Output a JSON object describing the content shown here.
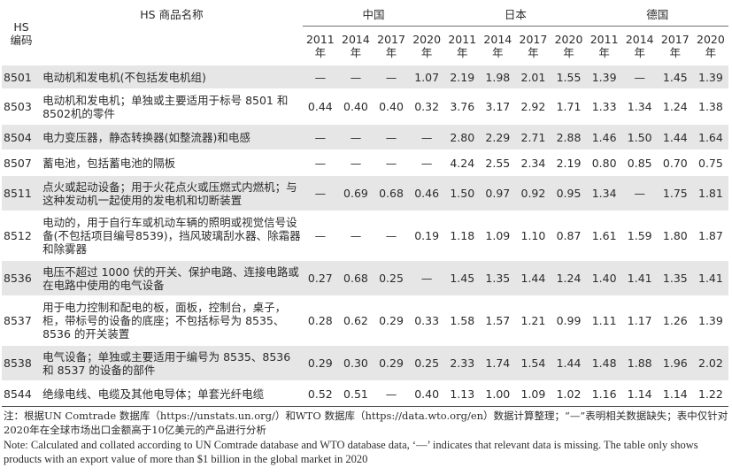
{
  "header": {
    "hs_code": "HS\n编码",
    "product_name": "HS 商品名称",
    "groups": [
      "中国",
      "日本",
      "德国"
    ],
    "years": [
      "2011\n年",
      "2014\n年",
      "2017\n年",
      "2020\n年"
    ]
  },
  "rows": [
    {
      "code": "8501",
      "name": "电动机和发电机(不包括发电机组)",
      "values": [
        "—",
        "—",
        "—",
        "1.07",
        "2.19",
        "1.98",
        "2.01",
        "1.55",
        "1.39",
        "—",
        "1.45",
        "1.39"
      ]
    },
    {
      "code": "8503",
      "name": "电动机和发电机；单独或主要适用于标号 8501 和8502机的零件",
      "values": [
        "0.44",
        "0.40",
        "0.40",
        "0.32",
        "3.76",
        "3.17",
        "2.92",
        "1.71",
        "1.33",
        "1.34",
        "1.24",
        "1.38"
      ]
    },
    {
      "code": "8504",
      "name": "电力变压器，静态转换器(如整流器)和电感",
      "values": [
        "—",
        "—",
        "—",
        "—",
        "2.80",
        "2.29",
        "2.71",
        "2.88",
        "1.46",
        "1.50",
        "1.44",
        "1.64"
      ]
    },
    {
      "code": "8507",
      "name": "蓄电池，包括蓄电池的隔板",
      "values": [
        "—",
        "—",
        "—",
        "—",
        "4.24",
        "2.55",
        "2.34",
        "2.19",
        "0.80",
        "0.85",
        "0.70",
        "0.75"
      ]
    },
    {
      "code": "8511",
      "name": "点火或起动设备；用于火花点火或压燃式内燃机；与这种发动机一起使用的发电机和切断装置",
      "values": [
        "—",
        "0.69",
        "0.68",
        "0.46",
        "1.50",
        "0.97",
        "0.92",
        "0.95",
        "1.34",
        "—",
        "1.75",
        "1.81"
      ]
    },
    {
      "code": "8512",
      "name": "电动的，用于自行车或机动车辆的照明或视觉信号设备(不包括项目编号8539)，挡风玻璃刮水器、除霜器和除雾器",
      "values": [
        "—",
        "—",
        "—",
        "0.19",
        "1.18",
        "1.09",
        "1.10",
        "0.87",
        "1.61",
        "1.59",
        "1.80",
        "1.87"
      ]
    },
    {
      "code": "8536",
      "name": "电压不超过 1000 伏的开关、保护电路、连接电路或在电路中使用的电气设备",
      "values": [
        "0.27",
        "0.68",
        "0.25",
        "—",
        "1.45",
        "1.35",
        "1.44",
        "1.24",
        "1.40",
        "1.41",
        "1.35",
        "1.41"
      ]
    },
    {
      "code": "8537",
      "name": "用于电力控制和配电的板，面板，控制台，桌子，柜，带标号的设备的底座；不包括标号为 8535、8536 的开关装置",
      "values": [
        "0.28",
        "0.62",
        "0.29",
        "0.33",
        "1.58",
        "1.57",
        "1.21",
        "0.99",
        "1.11",
        "1.17",
        "1.26",
        "1.39"
      ]
    },
    {
      "code": "8538",
      "name": "电气设备；单独或主要适用于编号为 8535、8536 和 8537 的设备的部件",
      "values": [
        "0.29",
        "0.30",
        "0.29",
        "0.25",
        "2.33",
        "1.74",
        "1.54",
        "1.44",
        "1.48",
        "1.88",
        "1.96",
        "2.02"
      ]
    },
    {
      "code": "8544",
      "name": "绝缘电线、电缆及其他电导体；单套光纤电缆",
      "values": [
        "0.52",
        "0.51",
        "—",
        "0.40",
        "1.13",
        "1.00",
        "1.09",
        "1.02",
        "1.16",
        "1.14",
        "1.14",
        "1.22"
      ]
    }
  ],
  "notes": {
    "zh": "注：根据UN Comtrade 数据库（https://unstats.un.org/）和WTO 数据库（https://data.wto.org/en）数据计算整理；“—”表明相关数据缺失；表中仅针对2020年在全球市场出口金额高于10亿美元的产品进行分析",
    "en": "Note: Calculated and collated according to UN Comtrade database and WTO database data, ‘—’ indicates that relevant data is missing. The table only shows products with an export value of more than $1 billion in the global market in 2020"
  }
}
